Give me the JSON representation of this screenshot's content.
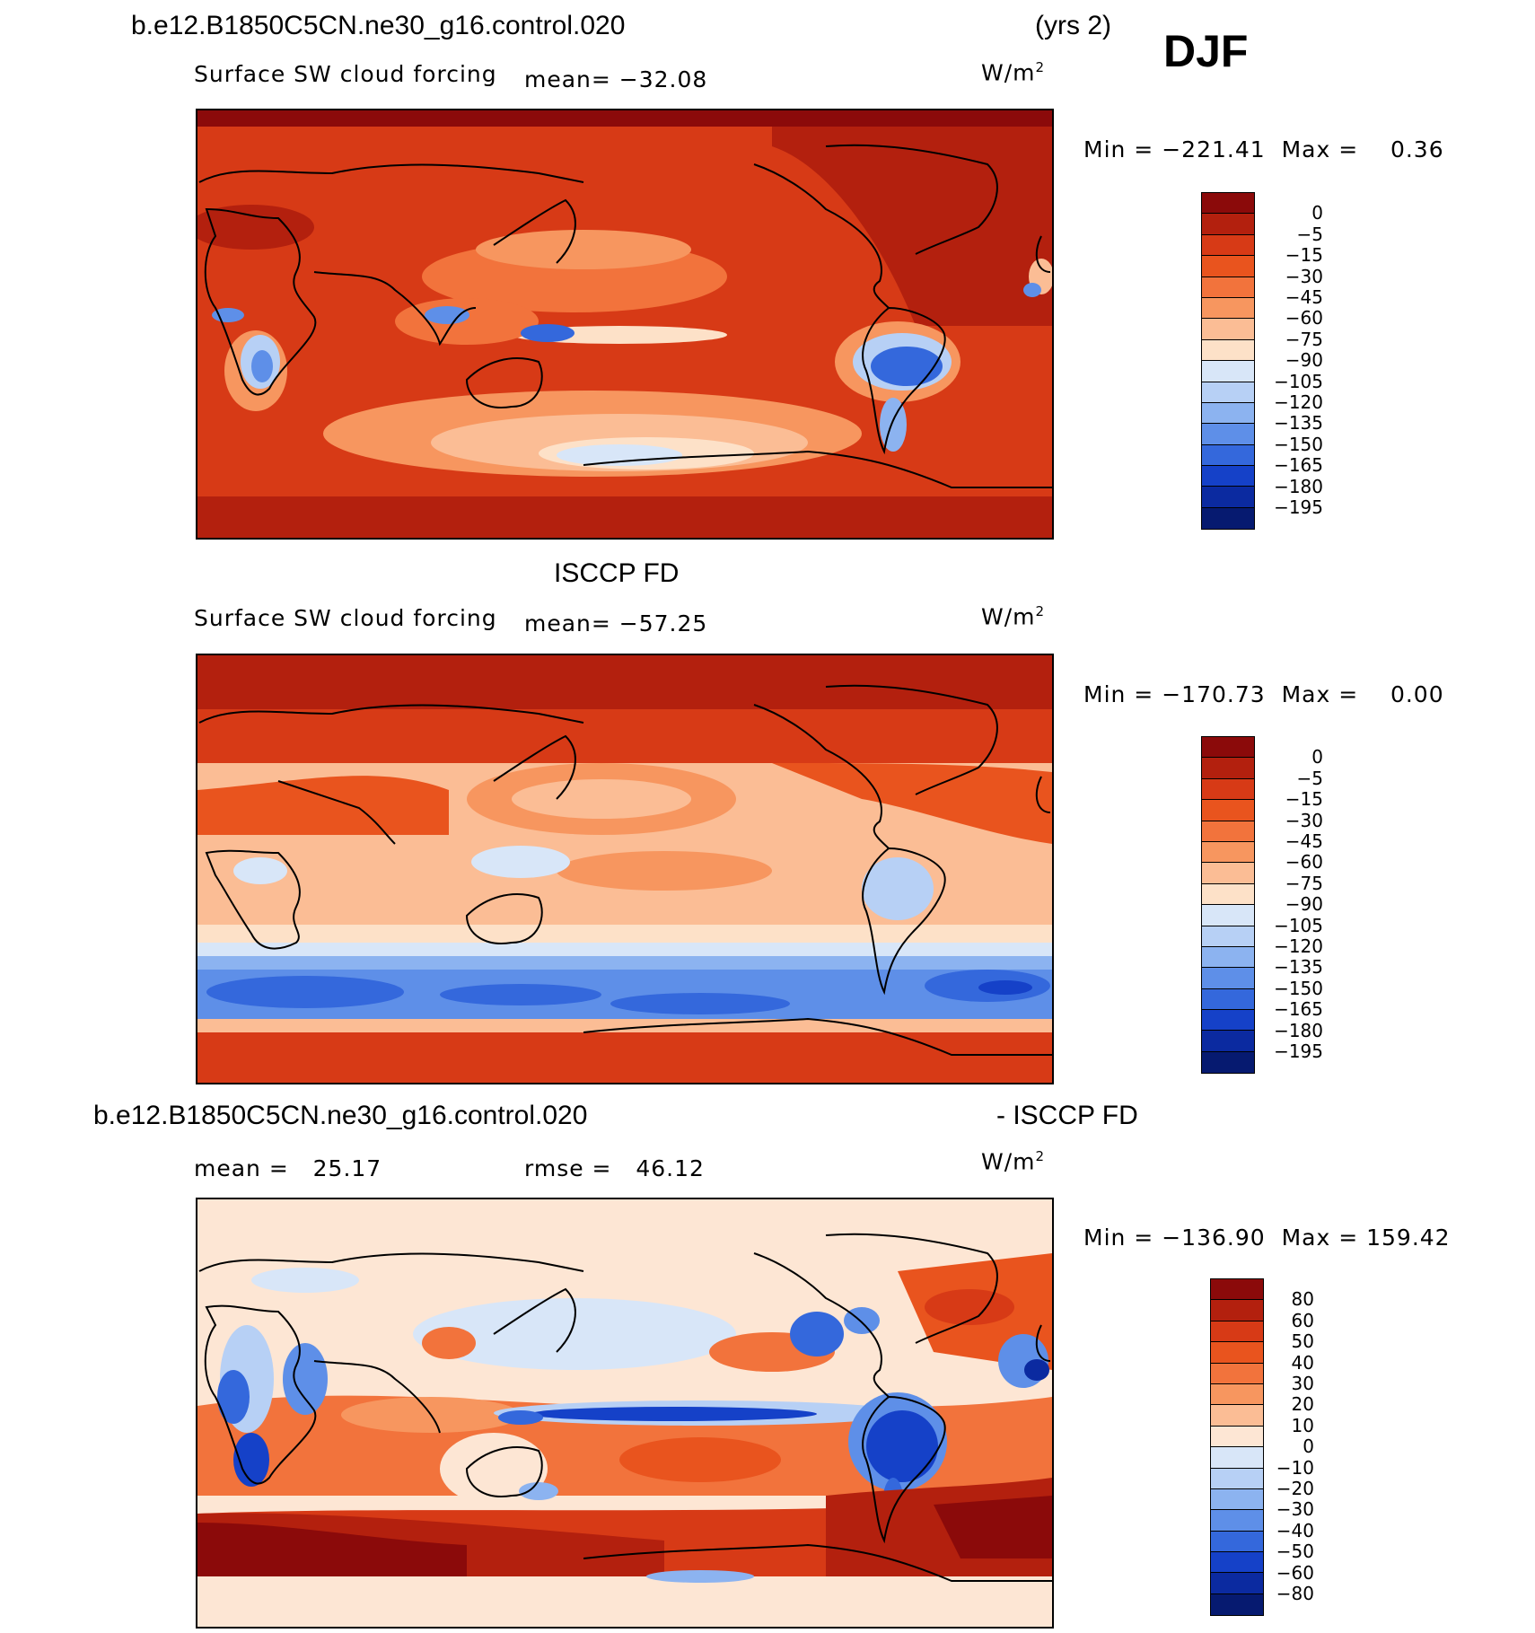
{
  "header": {
    "case_name": "b.e12.B1850C5CN.ne30_g16.control.020",
    "years": "(yrs 2)",
    "season": "DJF"
  },
  "panel1": {
    "variable": "Surface SW cloud forcing",
    "mean": "mean= −32.08",
    "units": "W/m",
    "units_exp": "2",
    "min_label": "Min =",
    "min_value": "−221.41",
    "max_label": "Max =",
    "max_value": "0.36",
    "legend": [
      "0",
      "−5",
      "−15",
      "−30",
      "−45",
      "−60",
      "−75",
      "−90",
      "−105",
      "−120",
      "−135",
      "−150",
      "−165",
      "−180",
      "−195"
    ],
    "colors": [
      "#8b0a0a",
      "#b3200e",
      "#d73a16",
      "#e9541e",
      "#f2733c",
      "#f7965f",
      "#fbbd95",
      "#fde1c8",
      "#d8e6f8",
      "#b7d0f5",
      "#8cb3f0",
      "#5e8fe8",
      "#3468dc",
      "#1541c8",
      "#0b2aa0",
      "#061a70"
    ]
  },
  "panel2": {
    "title": "ISCCP FD",
    "variable": "Surface SW cloud forcing",
    "mean": "mean= −57.25",
    "units": "W/m",
    "units_exp": "2",
    "min_label": "Min =",
    "min_value": "−170.73",
    "max_label": "Max =",
    "max_value": "0.00",
    "legend": [
      "0",
      "−5",
      "−15",
      "−30",
      "−45",
      "−60",
      "−75",
      "−90",
      "−105",
      "−120",
      "−135",
      "−150",
      "−165",
      "−180",
      "−195"
    ],
    "colors": [
      "#8b0a0a",
      "#b3200e",
      "#d73a16",
      "#e9541e",
      "#f2733c",
      "#f7965f",
      "#fbbd95",
      "#fde1c8",
      "#d8e6f8",
      "#b7d0f5",
      "#8cb3f0",
      "#5e8fe8",
      "#3468dc",
      "#1541c8",
      "#0b2aa0",
      "#061a70"
    ]
  },
  "panel3": {
    "title_left": "b.e12.B1850C5CN.ne30_g16.control.020",
    "title_right": "- ISCCP FD",
    "mean_label": "mean =",
    "mean_value": "25.17",
    "rmse_label": "rmse =",
    "rmse_value": "46.12",
    "units": "W/m",
    "units_exp": "2",
    "min_label": "Min =",
    "min_value": "−136.90",
    "max_label": "Max =",
    "max_value": "159.42",
    "legend": [
      "80",
      "60",
      "50",
      "40",
      "30",
      "20",
      "10",
      "0",
      "−10",
      "−20",
      "−30",
      "−40",
      "−50",
      "−60",
      "−80"
    ],
    "colors": [
      "#8b0a0a",
      "#b3200e",
      "#d73a16",
      "#e9541e",
      "#f2733c",
      "#f7965f",
      "#fbbd95",
      "#fde6d4",
      "#d8e6f8",
      "#b7d0f5",
      "#8cb3f0",
      "#5e8fe8",
      "#3468dc",
      "#1541c8",
      "#0b2aa0",
      "#061a70"
    ]
  }
}
